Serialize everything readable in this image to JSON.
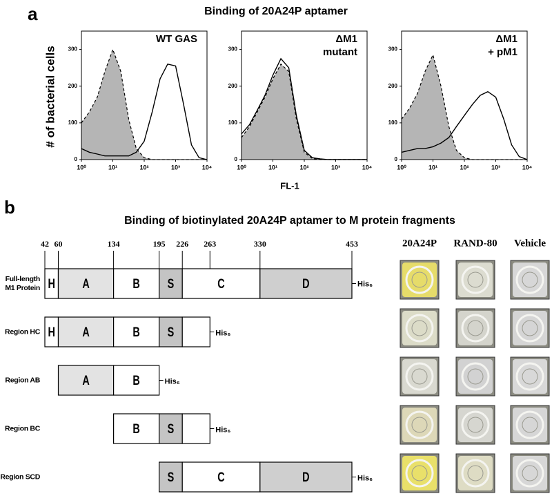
{
  "figure": {
    "panel_a_label": "a",
    "panel_a_title": "Binding of 20A24P aptamer",
    "ylabel": "# of bacterial cells",
    "xlabel": "FL-1"
  },
  "chart_data": [
    {
      "type": "line",
      "annotation": [
        "WT GAS"
      ],
      "log_x": true,
      "x": [
        1,
        1.8,
        3.2,
        5.6,
        10,
        18,
        32,
        56,
        100,
        180,
        320,
        560,
        1000,
        1800,
        3200,
        5600,
        10000
      ],
      "xlim": [
        1,
        10000
      ],
      "xticks": [
        {
          "value": 1,
          "label": "10⁰"
        },
        {
          "value": 10,
          "label": "10¹"
        },
        {
          "value": 100,
          "label": "10²"
        },
        {
          "value": 1000,
          "label": "10³"
        },
        {
          "value": 10000,
          "label": "10⁴"
        }
      ],
      "ylim": [
        0,
        350
      ],
      "yticks": [
        0,
        100,
        200,
        300
      ],
      "series": [
        {
          "color": "#b5b5b5",
          "fill": true,
          "dashed": true,
          "values": [
            100,
            130,
            170,
            240,
            300,
            240,
            110,
            30,
            5,
            0,
            0,
            0,
            0,
            0,
            0,
            0,
            0
          ]
        },
        {
          "color": "#000000",
          "fill": false,
          "dashed": false,
          "values": [
            30,
            20,
            15,
            10,
            10,
            10,
            10,
            20,
            50,
            130,
            220,
            260,
            255,
            150,
            40,
            5,
            0
          ]
        }
      ]
    },
    {
      "type": "line",
      "annotation": [
        "ΔM1",
        "mutant"
      ],
      "log_x": true,
      "x": [
        1,
        1.8,
        3.2,
        5.6,
        10,
        18,
        32,
        56,
        100,
        180,
        320,
        560,
        1000,
        1800,
        3200,
        5600,
        10000
      ],
      "xlim": [
        1,
        10000
      ],
      "xticks": [
        {
          "value": 1,
          "label": "10⁰"
        },
        {
          "value": 10,
          "label": "10¹"
        },
        {
          "value": 100,
          "label": "10²"
        },
        {
          "value": 1000,
          "label": "10³"
        },
        {
          "value": 10000,
          "label": "10⁴"
        }
      ],
      "ylim": [
        0,
        350
      ],
      "yticks": [
        0,
        100,
        200,
        300
      ],
      "series": [
        {
          "color": "#b5b5b5",
          "fill": true,
          "dashed": true,
          "values": [
            60,
            90,
            130,
            170,
            220,
            260,
            240,
            110,
            20,
            3,
            0,
            0,
            0,
            0,
            0,
            0,
            0
          ]
        },
        {
          "color": "#000000",
          "fill": false,
          "dashed": false,
          "values": [
            70,
            95,
            135,
            175,
            230,
            275,
            250,
            120,
            25,
            5,
            2,
            0,
            0,
            0,
            0,
            0,
            0
          ]
        }
      ]
    },
    {
      "type": "line",
      "annotation": [
        "ΔM1",
        "+ pM1"
      ],
      "log_x": true,
      "x": [
        1,
        1.8,
        3.2,
        5.6,
        10,
        18,
        32,
        56,
        100,
        180,
        320,
        560,
        1000,
        1800,
        3200,
        5600,
        10000
      ],
      "xlim": [
        1,
        10000
      ],
      "xticks": [
        {
          "value": 1,
          "label": "10⁰"
        },
        {
          "value": 10,
          "label": "10¹"
        },
        {
          "value": 100,
          "label": "10²"
        },
        {
          "value": 1000,
          "label": "10³"
        },
        {
          "value": 10000,
          "label": "10⁴"
        }
      ],
      "ylim": [
        0,
        350
      ],
      "yticks": [
        0,
        100,
        200,
        300
      ],
      "series": [
        {
          "color": "#b5b5b5",
          "fill": true,
          "dashed": true,
          "values": [
            110,
            140,
            180,
            240,
            285,
            200,
            90,
            25,
            5,
            0,
            0,
            0,
            0,
            0,
            0,
            0,
            0
          ]
        },
        {
          "color": "#000000",
          "fill": false,
          "dashed": false,
          "values": [
            20,
            25,
            30,
            30,
            35,
            45,
            60,
            90,
            120,
            150,
            175,
            185,
            170,
            110,
            40,
            8,
            0
          ]
        }
      ]
    }
  ],
  "panel_b": {
    "label": "b",
    "title": "Binding of biotinylated 20A24P aptamer to M protein fragments",
    "positions": [
      42,
      60,
      134,
      195,
      226,
      263,
      330,
      453
    ],
    "tag": "His₆",
    "rows": [
      {
        "label": [
          "Full-length",
          "M1 Protein"
        ],
        "segments": [
          {
            "label": "H",
            "start": 42,
            "end": 60,
            "fill": "#ffffff"
          },
          {
            "label": "A",
            "start": 60,
            "end": 134,
            "fill": "#e3e3e3"
          },
          {
            "label": "B",
            "start": 134,
            "end": 195,
            "fill": "#ffffff"
          },
          {
            "label": "S",
            "start": 195,
            "end": 226,
            "fill": "#c4c4c4"
          },
          {
            "label": "C",
            "start": 226,
            "end": 330,
            "fill": "#ffffff"
          },
          {
            "label": "D",
            "start": 330,
            "end": 453,
            "fill": "#cfcfcf"
          }
        ]
      },
      {
        "label": [
          "Region HC"
        ],
        "segments": [
          {
            "label": "H",
            "start": 42,
            "end": 60,
            "fill": "#ffffff"
          },
          {
            "label": "A",
            "start": 60,
            "end": 134,
            "fill": "#e3e3e3"
          },
          {
            "label": "B",
            "start": 134,
            "end": 195,
            "fill": "#ffffff"
          },
          {
            "label": "S",
            "start": 195,
            "end": 226,
            "fill": "#c4c4c4"
          },
          {
            "start": 226,
            "end": 263,
            "fill": "#ffffff"
          }
        ]
      },
      {
        "label": [
          "Region AB"
        ],
        "segments": [
          {
            "label": "A",
            "start": 60,
            "end": 134,
            "fill": "#e3e3e3"
          },
          {
            "label": "B",
            "start": 134,
            "end": 195,
            "fill": "#ffffff"
          }
        ]
      },
      {
        "label": [
          "Region BC"
        ],
        "segments": [
          {
            "label": "B",
            "start": 134,
            "end": 195,
            "fill": "#ffffff"
          },
          {
            "label": "S",
            "start": 195,
            "end": 226,
            "fill": "#c4c4c4"
          },
          {
            "start": 226,
            "end": 263,
            "fill": "#ffffff"
          }
        ]
      },
      {
        "label": [
          "Region SCD"
        ],
        "segments": [
          {
            "label": "S",
            "start": 195,
            "end": 226,
            "fill": "#c4c4c4"
          },
          {
            "label": "C",
            "start": 226,
            "end": 330,
            "fill": "#ffffff"
          },
          {
            "label": "D",
            "start": 330,
            "end": 453,
            "fill": "#cfcfcf"
          }
        ]
      }
    ],
    "well_columns": [
      "20A24P",
      "RAND-80",
      "Vehicle"
    ]
  }
}
